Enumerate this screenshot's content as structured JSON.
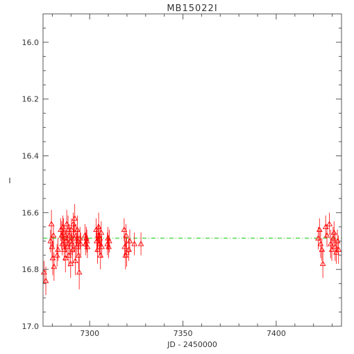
{
  "chart_data": {
    "type": "scatter",
    "title": "MB15022I",
    "xlabel": "JD - 2450000",
    "ylabel": "I",
    "xlim": [
      7275,
      7435
    ],
    "ylim": [
      17.0,
      15.9
    ],
    "y_inverted": true,
    "xticks": [
      7300,
      7350,
      7400
    ],
    "yticks": [
      16.0,
      16.2,
      16.4,
      16.6,
      16.8,
      17.0
    ],
    "ytick_labels": [
      "16.0",
      "16.2",
      "16.4",
      "16.6",
      "16.8",
      "17.0"
    ],
    "grid": false,
    "marker": "open-triangle",
    "colors": {
      "points": "#ff0000",
      "reference_line": "#00cc00",
      "axes": "#555555"
    },
    "reference_line": {
      "y": 16.69,
      "style": "dash-dot"
    },
    "series": [
      {
        "points": [
          [
            7275.5,
            16.81,
            0.04
          ],
          [
            7276.5,
            16.84,
            0.05
          ],
          [
            7279.0,
            16.7,
            0.04
          ],
          [
            7279.5,
            16.64,
            0.05
          ],
          [
            7279.8,
            16.72,
            0.04
          ],
          [
            7280.2,
            16.76,
            0.06
          ],
          [
            7280.6,
            16.68,
            0.04
          ],
          [
            7280.9,
            16.79,
            0.05
          ],
          [
            7282.5,
            16.75,
            0.04
          ],
          [
            7283.0,
            16.73,
            0.04
          ],
          [
            7284.5,
            16.66,
            0.04
          ],
          [
            7285.0,
            16.68,
            0.05
          ],
          [
            7285.3,
            16.71,
            0.04
          ],
          [
            7285.6,
            16.65,
            0.04
          ],
          [
            7286.0,
            16.67,
            0.05
          ],
          [
            7286.3,
            16.73,
            0.04
          ],
          [
            7286.6,
            16.69,
            0.04
          ],
          [
            7287.0,
            16.76,
            0.05
          ],
          [
            7287.3,
            16.7,
            0.04
          ],
          [
            7287.7,
            16.64,
            0.05
          ],
          [
            7288.0,
            16.72,
            0.04
          ],
          [
            7288.4,
            16.66,
            0.05
          ],
          [
            7288.8,
            16.75,
            0.04
          ],
          [
            7289.1,
            16.68,
            0.04
          ],
          [
            7289.5,
            16.7,
            0.05
          ],
          [
            7289.8,
            16.78,
            0.05
          ],
          [
            7290.2,
            16.66,
            0.04
          ],
          [
            7290.5,
            16.71,
            0.04
          ],
          [
            7290.9,
            16.73,
            0.05
          ],
          [
            7291.2,
            16.64,
            0.04
          ],
          [
            7291.6,
            16.69,
            0.05
          ],
          [
            7292.0,
            16.62,
            0.05
          ],
          [
            7292.3,
            16.77,
            0.05
          ],
          [
            7292.7,
            16.68,
            0.04
          ],
          [
            7293.0,
            16.72,
            0.04
          ],
          [
            7293.4,
            16.66,
            0.05
          ],
          [
            7293.7,
            16.7,
            0.04
          ],
          [
            7294.1,
            16.75,
            0.05
          ],
          [
            7294.4,
            16.81,
            0.06
          ],
          [
            7294.8,
            16.69,
            0.04
          ],
          [
            7295.2,
            16.71,
            0.04
          ],
          [
            7297.5,
            16.68,
            0.04
          ],
          [
            7297.8,
            16.71,
            0.04
          ],
          [
            7298.2,
            16.69,
            0.04
          ],
          [
            7298.5,
            16.7,
            0.04
          ],
          [
            7298.8,
            16.72,
            0.04
          ],
          [
            7303.5,
            16.66,
            0.04
          ],
          [
            7303.8,
            16.7,
            0.04
          ],
          [
            7304.2,
            16.73,
            0.05
          ],
          [
            7304.5,
            16.68,
            0.04
          ],
          [
            7304.8,
            16.65,
            0.05
          ],
          [
            7305.2,
            16.71,
            0.04
          ],
          [
            7305.5,
            16.69,
            0.04
          ],
          [
            7305.8,
            16.75,
            0.05
          ],
          [
            7306.2,
            16.67,
            0.04
          ],
          [
            7306.5,
            16.72,
            0.04
          ],
          [
            7309.5,
            16.71,
            0.04
          ],
          [
            7309.8,
            16.69,
            0.04
          ],
          [
            7310.2,
            16.72,
            0.04
          ],
          [
            7310.5,
            16.7,
            0.04
          ],
          [
            7318.5,
            16.66,
            0.04
          ],
          [
            7318.8,
            16.72,
            0.04
          ],
          [
            7319.2,
            16.75,
            0.05
          ],
          [
            7319.5,
            16.68,
            0.04
          ],
          [
            7319.8,
            16.74,
            0.05
          ],
          [
            7321.0,
            16.73,
            0.04
          ],
          [
            7321.5,
            16.7,
            0.04
          ],
          [
            7324.0,
            16.71,
            0.04
          ],
          [
            7327.5,
            16.71,
            0.04
          ],
          [
            7422.5,
            16.69,
            0.04
          ],
          [
            7423.2,
            16.66,
            0.04
          ],
          [
            7423.8,
            16.71,
            0.05
          ],
          [
            7424.5,
            16.73,
            0.04
          ],
          [
            7425.0,
            16.78,
            0.05
          ],
          [
            7426.5,
            16.65,
            0.04
          ],
          [
            7427.2,
            16.68,
            0.04
          ],
          [
            7428.5,
            16.64,
            0.04
          ],
          [
            7429.2,
            16.71,
            0.05
          ],
          [
            7429.8,
            16.73,
            0.04
          ],
          [
            7430.5,
            16.69,
            0.04
          ],
          [
            7431.0,
            16.67,
            0.04
          ],
          [
            7431.6,
            16.72,
            0.05
          ],
          [
            7432.2,
            16.74,
            0.04
          ],
          [
            7432.8,
            16.7,
            0.04
          ],
          [
            7433.4,
            16.73,
            0.05
          ]
        ]
      }
    ]
  }
}
